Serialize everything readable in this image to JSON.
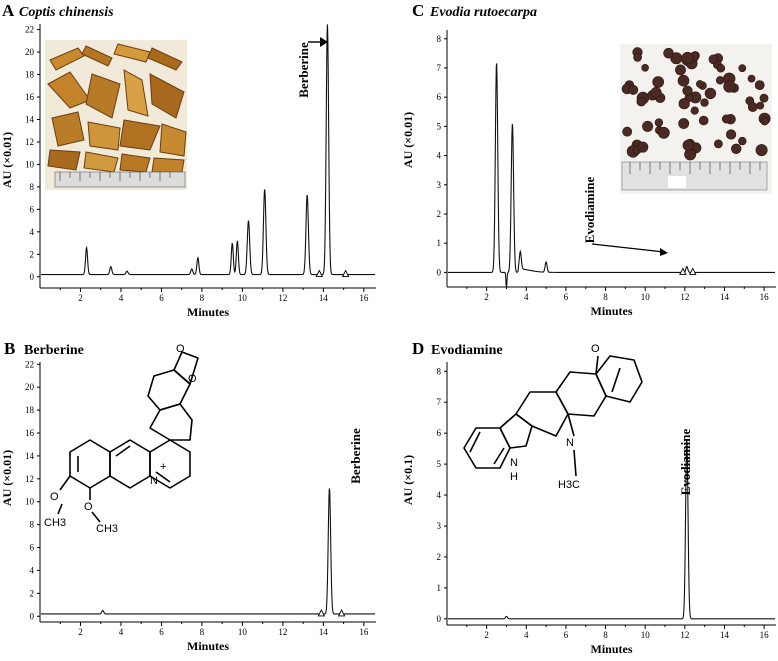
{
  "chart_data": [
    {
      "type": "line",
      "panel": "A",
      "title": "Coptis chinensis",
      "xlabel": "Minutes",
      "ylabel": "AU (×0.01)",
      "xlim": [
        0,
        16.6
      ],
      "ylim": [
        -1,
        22.5
      ],
      "xticks": [
        2,
        4,
        6,
        8,
        10,
        12,
        14,
        16
      ],
      "yticks": [
        0,
        2,
        4,
        6,
        8,
        10,
        12,
        14,
        16,
        18,
        20,
        22
      ],
      "baseline": 0.2,
      "peaks": [
        {
          "rt": 2.3,
          "height": 2.4
        },
        {
          "rt": 3.5,
          "height": 0.7
        },
        {
          "rt": 4.3,
          "height": 0.3
        },
        {
          "rt": 7.5,
          "height": 0.5
        },
        {
          "rt": 7.8,
          "height": 1.5
        },
        {
          "rt": 9.5,
          "height": 2.8
        },
        {
          "rt": 9.75,
          "height": 3.0
        },
        {
          "rt": 10.3,
          "height": 4.8
        },
        {
          "rt": 11.1,
          "height": 7.6
        },
        {
          "rt": 13.2,
          "height": 7.1
        },
        {
          "rt": 14.2,
          "height": 22.3
        }
      ],
      "markers": [
        13.8,
        15.1
      ],
      "annotations": [
        {
          "text": "Berberine",
          "rt": 14.2
        }
      ],
      "photo": "coptis-rhizome-photo"
    },
    {
      "type": "line",
      "panel": "B",
      "title": "Berberine",
      "xlabel": "Minutes",
      "ylabel": "AU (×0.01)",
      "xlim": [
        0,
        16.6
      ],
      "ylim": [
        -0.5,
        22.2
      ],
      "xticks": [
        2,
        4,
        6,
        8,
        10,
        12,
        14,
        16
      ],
      "yticks": [
        0,
        2,
        4,
        6,
        8,
        10,
        12,
        14,
        16,
        18,
        20,
        22
      ],
      "baseline": 0.2,
      "peaks": [
        {
          "rt": 3.1,
          "height": 0.3
        },
        {
          "rt": 14.3,
          "height": 11.0
        }
      ],
      "markers": [
        13.9,
        14.9
      ],
      "annotations": [
        {
          "text": "Berberine",
          "rt": 14.3
        }
      ],
      "structure": "berberine",
      "structure_labels": [
        "+",
        "N",
        "O",
        "CH3"
      ]
    },
    {
      "type": "line",
      "panel": "C",
      "title": "Evodia rutoecarpa",
      "xlabel": "Minutes",
      "ylabel": "AU (×0.01)",
      "xlim": [
        0,
        16.6
      ],
      "ylim": [
        -0.5,
        8.3
      ],
      "xticks": [
        2,
        4,
        6,
        8,
        10,
        12,
        14,
        16
      ],
      "yticks": [
        0,
        1,
        2,
        3,
        4,
        5,
        6,
        7,
        8
      ],
      "baseline": 0.0,
      "peaks": [
        {
          "rt": 2.5,
          "height": 7.2
        },
        {
          "rt": 3.3,
          "height": 5.1
        },
        {
          "rt": 3.7,
          "height": 0.6
        },
        {
          "rt": 5.0,
          "height": 0.35
        },
        {
          "rt": 12.1,
          "height": 0.2
        }
      ],
      "markers": [
        11.9,
        12.4
      ],
      "annotations": [
        {
          "text": "Evodiamine",
          "rt": 12.1
        }
      ],
      "photo": "evodia-fruit-photo"
    },
    {
      "type": "line",
      "panel": "D",
      "title": "Evodiamine",
      "xlabel": "Minutes",
      "ylabel": "AU (×0.1)",
      "xlim": [
        0,
        16.6
      ],
      "ylim": [
        -0.2,
        8.3
      ],
      "xticks": [
        2,
        4,
        6,
        8,
        10,
        12,
        14,
        16
      ],
      "yticks": [
        0,
        1,
        2,
        3,
        4,
        5,
        6,
        7,
        8
      ],
      "baseline": 0.0,
      "peaks": [
        {
          "rt": 3.0,
          "height": 0.08
        },
        {
          "rt": 12.1,
          "height": 5.8
        }
      ],
      "annotations": [
        {
          "text": "Evodiamine",
          "rt": 12.1
        }
      ],
      "structure": "evodiamine",
      "structure_labels": [
        "N",
        "H",
        "O",
        "H3C"
      ]
    }
  ]
}
